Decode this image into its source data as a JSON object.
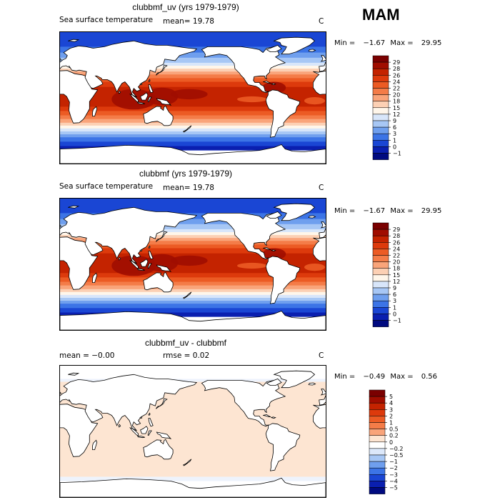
{
  "season": "MAM",
  "panels": [
    {
      "title": "clubbmf_uv (yrs 1979-1979)",
      "left_label": "Sea surface temperature",
      "mean_text": "mean=   19.78",
      "rmse_text": "",
      "units": "C",
      "min_label": "Min =",
      "min_value": "−1.67",
      "max_label": "Max =",
      "max_value": "29.95"
    },
    {
      "title": "clubbmf (yrs 1979-1979)",
      "left_label": "Sea surface temperature",
      "mean_text": "mean=   19.78",
      "rmse_text": "",
      "units": "C",
      "min_label": "Min =",
      "min_value": "−1.67",
      "max_label": "Max =",
      "max_value": "29.95"
    },
    {
      "title": "clubbmf_uv - clubbmf",
      "left_label": "mean =    −0.00",
      "mean_text": "",
      "rmse_text": "rmse =    0.02",
      "units": "C",
      "min_label": "Min =",
      "min_value": "−0.49",
      "max_label": "Max =",
      "max_value": "0.56"
    }
  ],
  "chart_data": [
    {
      "type": "heatmap",
      "title": "clubbmf_uv (yrs 1979-1979)",
      "variable": "Sea surface temperature",
      "units": "C",
      "mean": 19.78,
      "min": -1.67,
      "max": 29.95,
      "colorbar": {
        "labels": [
          "29",
          "28",
          "26",
          "24",
          "22",
          "20",
          "18",
          "15",
          "12",
          "9",
          "6",
          "3",
          "1",
          "0",
          "−1"
        ],
        "colors": [
          "#7a0000",
          "#a00d00",
          "#c42300",
          "#dd3a0c",
          "#ec5b24",
          "#f47c48",
          "#f9a47a",
          "#fcd0b4",
          "#fff6ea",
          "#d8e6fa",
          "#a7c7f5",
          "#6f9fee",
          "#3c74e6",
          "#1a46d4",
          "#0a1fb0",
          "#000a80"
        ]
      },
      "season": "MAM"
    },
    {
      "type": "heatmap",
      "title": "clubbmf (yrs 1979-1979)",
      "variable": "Sea surface temperature",
      "units": "C",
      "mean": 19.78,
      "min": -1.67,
      "max": 29.95,
      "colorbar": {
        "labels": [
          "29",
          "28",
          "26",
          "24",
          "22",
          "20",
          "18",
          "15",
          "12",
          "9",
          "6",
          "3",
          "1",
          "0",
          "−1"
        ],
        "colors": [
          "#7a0000",
          "#a00d00",
          "#c42300",
          "#dd3a0c",
          "#ec5b24",
          "#f47c48",
          "#f9a47a",
          "#fcd0b4",
          "#fff6ea",
          "#d8e6fa",
          "#a7c7f5",
          "#6f9fee",
          "#3c74e6",
          "#1a46d4",
          "#0a1fb0",
          "#000a80"
        ]
      },
      "season": "MAM"
    },
    {
      "type": "heatmap",
      "title": "clubbmf_uv - clubbmf",
      "units": "C",
      "mean": -0.0,
      "rmse": 0.02,
      "min": -0.49,
      "max": 0.56,
      "colorbar": {
        "labels": [
          "5",
          "4",
          "3",
          "2",
          "1",
          "0.5",
          "0.2",
          "0",
          "−0.2",
          "−0.5",
          "−1",
          "−2",
          "−3",
          "−4",
          "−5"
        ],
        "colors": [
          "#7a0000",
          "#a00d00",
          "#c42300",
          "#dd3a0c",
          "#ec5b24",
          "#f47c48",
          "#f9a47a",
          "#fde5d2",
          "#ffffff",
          "#dce8fa",
          "#a7c7f5",
          "#6f9fee",
          "#3c74e6",
          "#1a46d4",
          "#0a1fb0",
          "#000a80"
        ]
      },
      "season": "MAM"
    }
  ]
}
